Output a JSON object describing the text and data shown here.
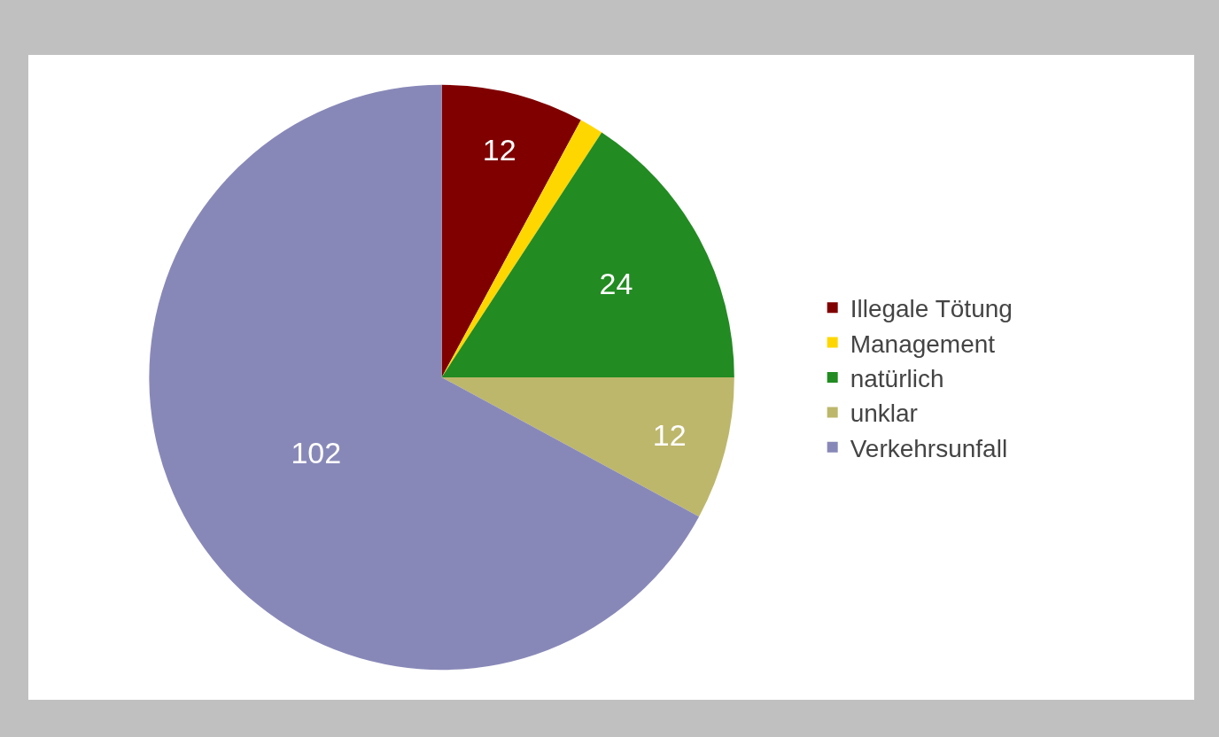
{
  "chart_data": {
    "type": "pie",
    "categories": [
      "Illegale Tötung",
      "Management",
      "natürlich",
      "unklar",
      "Verkehrsunfall"
    ],
    "values": [
      12,
      2,
      24,
      12,
      102
    ],
    "colors": [
      "#800000",
      "#ffd700",
      "#228b22",
      "#bdb76b",
      "#8888b8"
    ],
    "value_labels": [
      "12",
      null,
      "24",
      "12",
      "102"
    ],
    "legend": "right"
  }
}
